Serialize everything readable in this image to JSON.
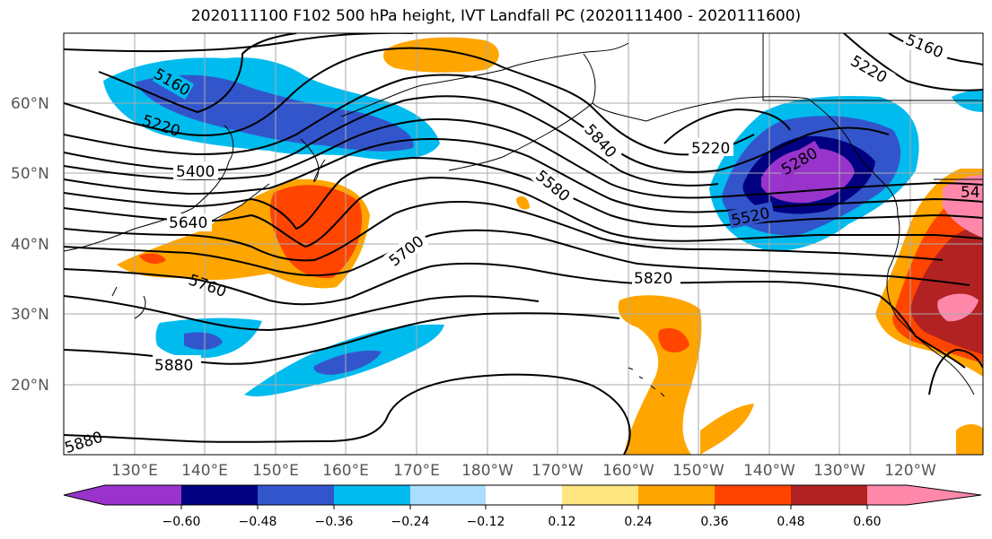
{
  "title": "2020111100 F102 500 hPa height, IVT Landfall PC (2020111400 - 2020111600)",
  "lat_labels": [
    "60°N",
    "50°N",
    "40°N",
    "30°N",
    "20°N"
  ],
  "lon_labels": [
    "130°E",
    "140°E",
    "150°E",
    "160°E",
    "170°E",
    "180°W",
    "170°W",
    "160°W",
    "150°W",
    "140°W",
    "130°W",
    "120°W"
  ],
  "contour_labels": [
    "5160",
    "5220",
    "5400",
    "5640",
    "5700",
    "5580",
    "5840",
    "5220",
    "5280",
    "5520",
    "5820",
    "5880",
    "5160",
    "5220",
    "5880",
    "5760",
    "54"
  ],
  "colorbar": {
    "colors": [
      "#9933cc",
      "#000080",
      "#3355cc",
      "#00bbee",
      "#aaddff",
      "#ffffff",
      "#ffe680",
      "#ffa500",
      "#ff4500",
      "#b22222",
      "#ff88aa"
    ],
    "ticks": [
      "−0.60",
      "−0.48",
      "−0.36",
      "−0.24",
      "−0.12",
      "0.12",
      "0.24",
      "0.36",
      "0.48",
      "0.60"
    ]
  }
}
